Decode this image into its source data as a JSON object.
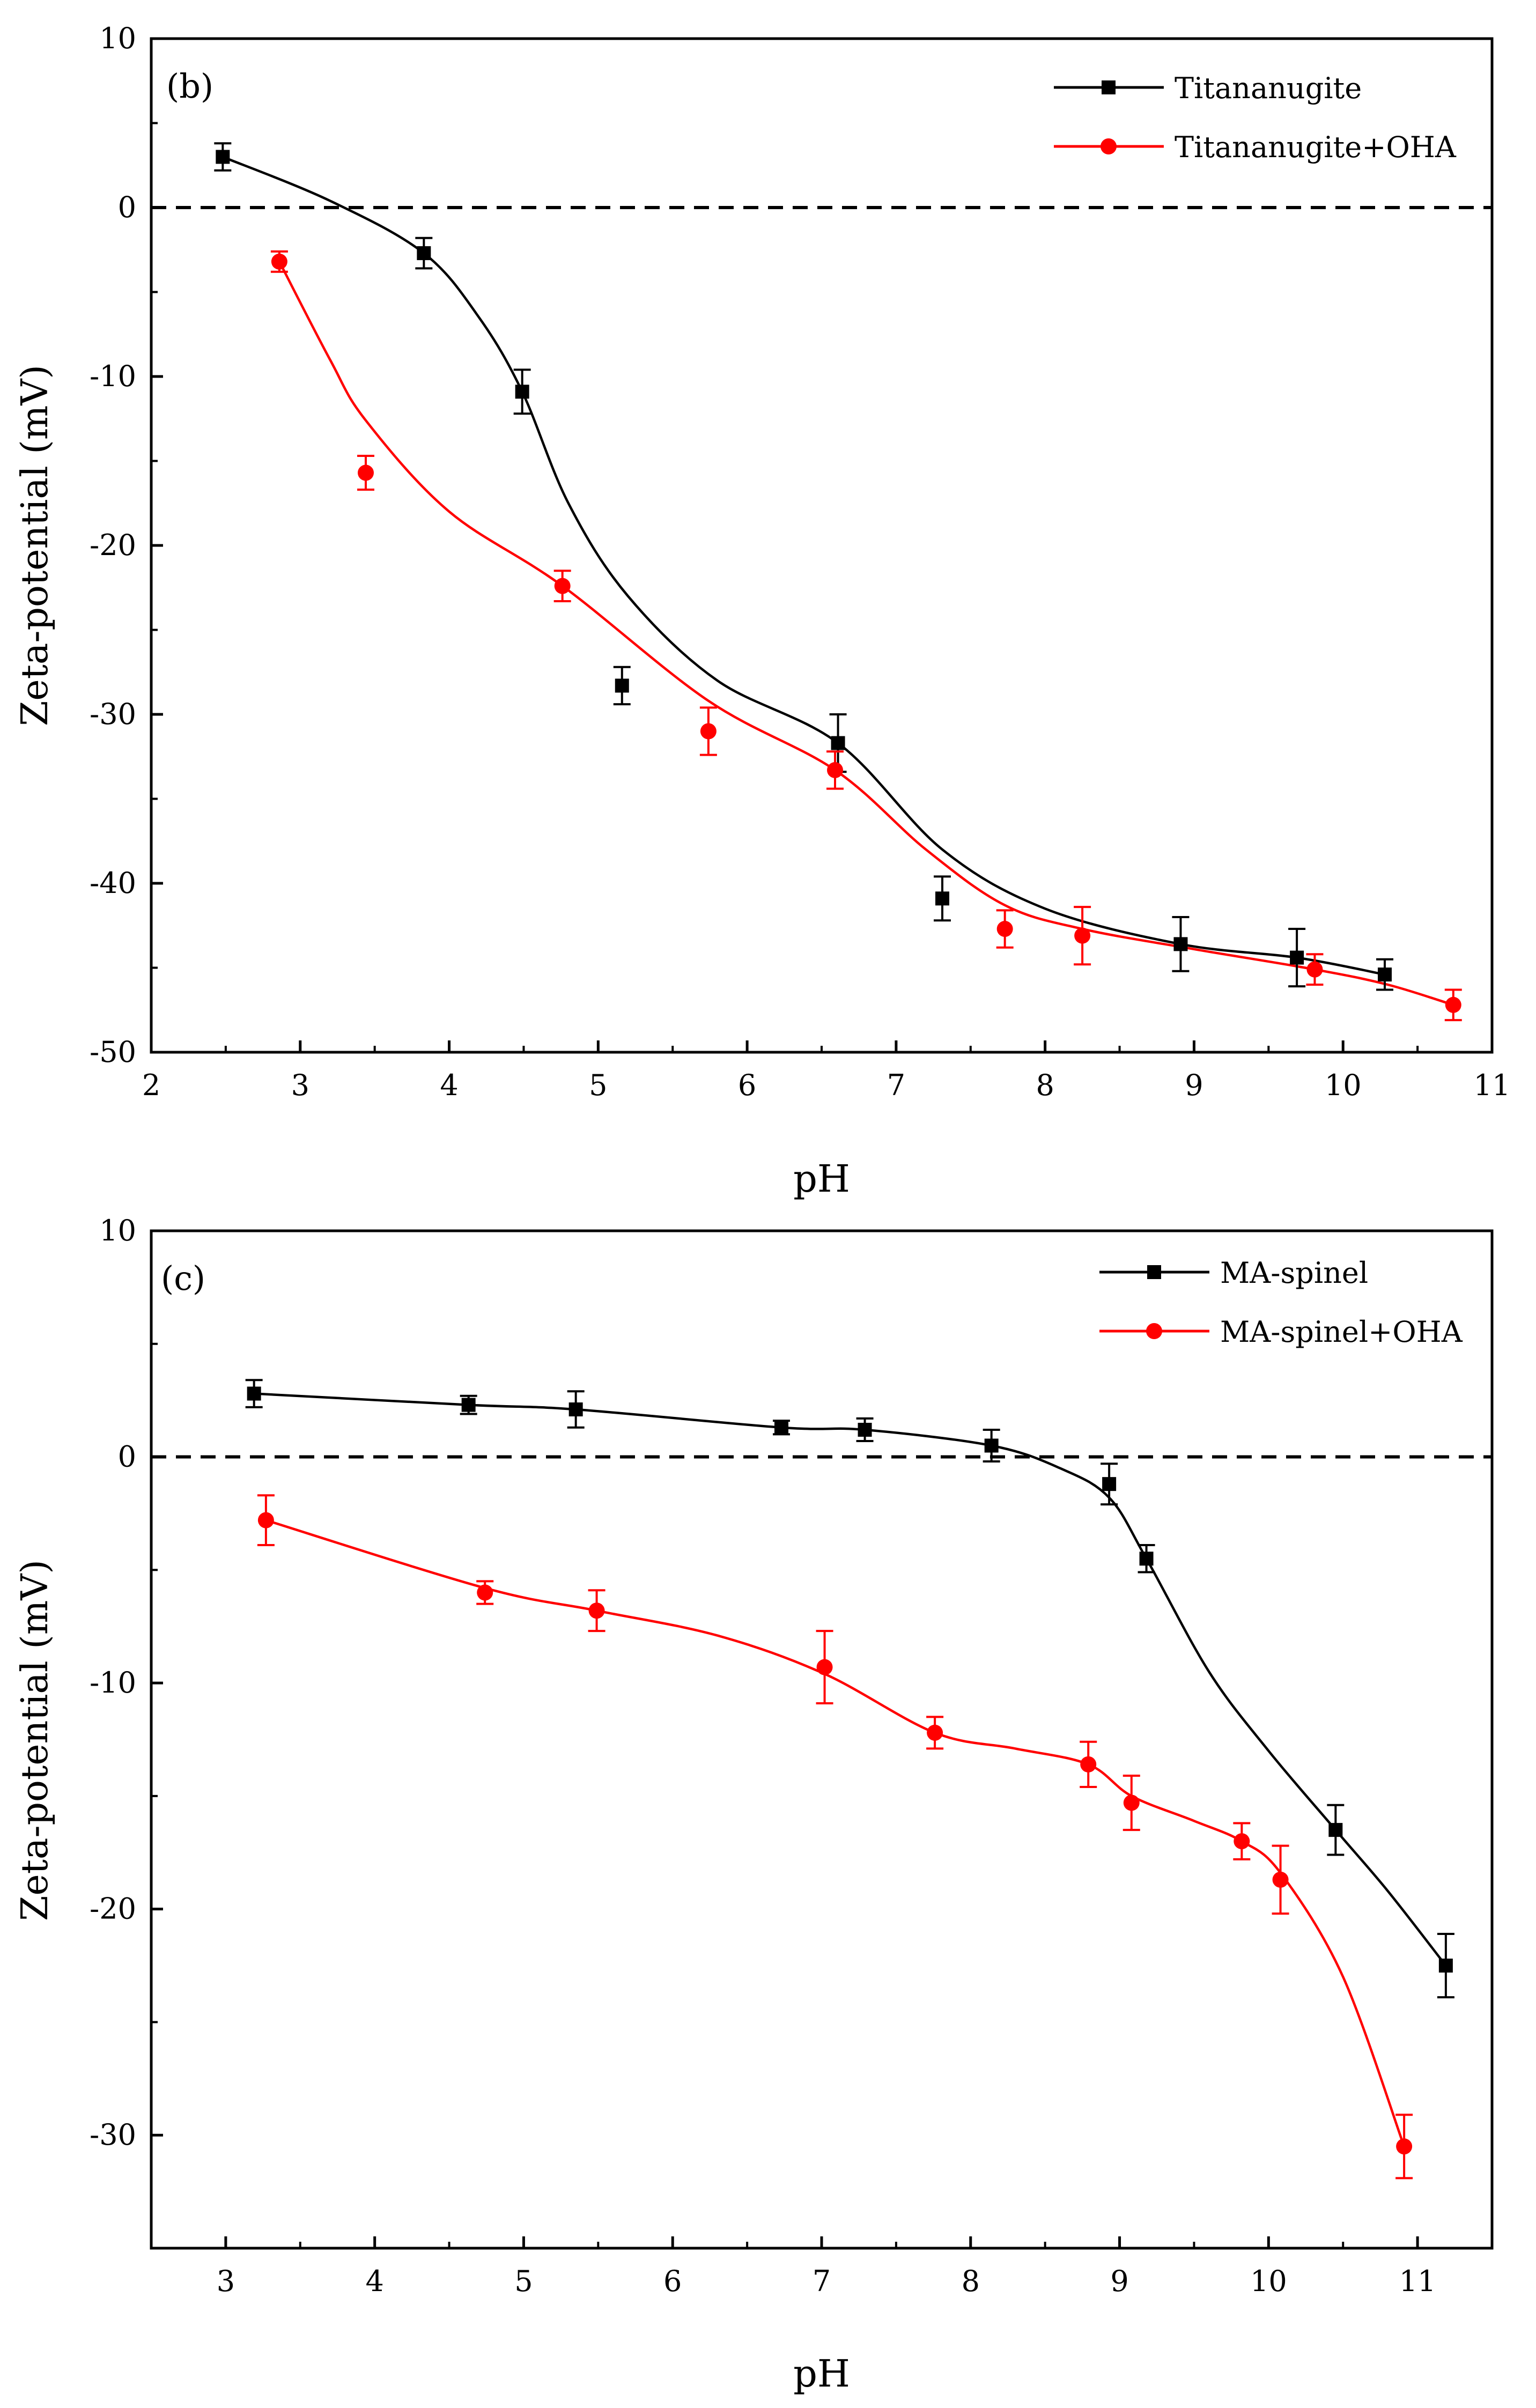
{
  "chart_data": [
    {
      "type": "line",
      "panel_label": "(b)",
      "xlabel": "pH",
      "ylabel": "Zeta-potential (mV)",
      "xlim": [
        2,
        11
      ],
      "ylim": [
        -50,
        10
      ],
      "xticks": [
        2,
        3,
        4,
        5,
        6,
        7,
        8,
        9,
        10,
        11
      ],
      "xtick_labels": [
        "2",
        "3",
        "4",
        "5",
        "6",
        "7",
        "8",
        "9",
        "10",
        "11"
      ],
      "yticks": [
        -50,
        -40,
        -30,
        -20,
        -10,
        0,
        10
      ],
      "ytick_labels": [
        "-50",
        "-40",
        "-30",
        "-20",
        "-10",
        "0",
        "10"
      ],
      "reference_line": 0,
      "legend_position": "top-right",
      "series": [
        {
          "name": "Titananugite",
          "color": "#000000",
          "marker": "square",
          "x": [
            2.48,
            3.83,
            4.49,
            5.16,
            6.61,
            7.31,
            8.91,
            9.69,
            10.28
          ],
          "y": [
            3.0,
            -2.7,
            -10.9,
            -28.3,
            -31.7,
            -40.9,
            -43.6,
            -44.4,
            -45.4
          ],
          "err": [
            0.8,
            0.9,
            1.3,
            1.1,
            1.7,
            1.3,
            1.6,
            1.7,
            0.9
          ],
          "curve": [
            [
              2.48,
              3.0
            ],
            [
              3.2,
              0.4
            ],
            [
              3.83,
              -2.7
            ],
            [
              4.2,
              -6.5
            ],
            [
              4.49,
              -10.9
            ],
            [
              4.8,
              -17.5
            ],
            [
              5.2,
              -23.0
            ],
            [
              5.8,
              -28.0
            ],
            [
              6.61,
              -31.7
            ],
            [
              7.31,
              -38.0
            ],
            [
              8.0,
              -41.5
            ],
            [
              8.91,
              -43.6
            ],
            [
              9.69,
              -44.4
            ],
            [
              10.28,
              -45.4
            ]
          ]
        },
        {
          "name": "Titananugite+OHA",
          "color": "#ff0000",
          "marker": "circle",
          "x": [
            2.86,
            3.44,
            4.76,
            5.74,
            6.59,
            7.73,
            8.25,
            9.81,
            10.74
          ],
          "y": [
            -3.2,
            -15.7,
            -22.4,
            -31.0,
            -33.3,
            -42.7,
            -43.1,
            -45.1,
            -47.2
          ],
          "err": [
            0.6,
            1.0,
            0.9,
            1.4,
            1.1,
            1.1,
            1.7,
            0.9,
            0.9
          ],
          "curve": [
            [
              2.86,
              -3.2
            ],
            [
              3.2,
              -9.0
            ],
            [
              3.44,
              -12.6
            ],
            [
              4.0,
              -18.0
            ],
            [
              4.76,
              -22.4
            ],
            [
              5.74,
              -29.2
            ],
            [
              6.59,
              -33.3
            ],
            [
              7.2,
              -38.0
            ],
            [
              7.73,
              -41.3
            ],
            [
              8.25,
              -42.7
            ],
            [
              9.0,
              -43.9
            ],
            [
              9.81,
              -45.1
            ],
            [
              10.3,
              -46.0
            ],
            [
              10.74,
              -47.2
            ]
          ]
        }
      ]
    },
    {
      "type": "line",
      "panel_label": "(c)",
      "xlabel": "pH",
      "ylabel": "Zeta-potential (mV)",
      "xlim": [
        2.5,
        11.5
      ],
      "ylim": [
        -35,
        10
      ],
      "xticks": [
        3,
        4,
        5,
        6,
        7,
        8,
        9,
        10,
        11
      ],
      "xtick_labels": [
        "3",
        "4",
        "5",
        "6",
        "7",
        "8",
        "9",
        "10",
        "11"
      ],
      "yticks": [
        -30,
        -20,
        -10,
        0,
        10
      ],
      "ytick_labels": [
        "-30",
        "-20",
        "-10",
        "0",
        "10"
      ],
      "reference_line": 0,
      "legend_position": "top-right",
      "series": [
        {
          "name": "MA-spinel",
          "color": "#000000",
          "marker": "square",
          "x": [
            3.19,
            4.63,
            5.35,
            6.73,
            7.29,
            8.14,
            8.93,
            9.18,
            10.45,
            11.19
          ],
          "y": [
            2.8,
            2.3,
            2.1,
            1.3,
            1.2,
            0.5,
            -1.2,
            -4.5,
            -16.5,
            -22.5
          ],
          "err": [
            0.6,
            0.4,
            0.8,
            0.3,
            0.5,
            0.7,
            0.9,
            0.6,
            1.1,
            1.4
          ],
          "curve": [
            [
              3.19,
              2.8
            ],
            [
              4.63,
              2.3
            ],
            [
              5.35,
              2.1
            ],
            [
              6.73,
              1.3
            ],
            [
              7.29,
              1.2
            ],
            [
              8.14,
              0.5
            ],
            [
              8.6,
              -0.5
            ],
            [
              8.93,
              -1.8
            ],
            [
              9.18,
              -4.5
            ],
            [
              9.6,
              -9.5
            ],
            [
              10.0,
              -13.0
            ],
            [
              10.45,
              -16.5
            ],
            [
              10.8,
              -19.2
            ],
            [
              11.19,
              -22.5
            ]
          ]
        },
        {
          "name": "MA-spinel+OHA",
          "color": "#ff0000",
          "marker": "circle",
          "x": [
            3.27,
            4.74,
            5.49,
            7.02,
            7.76,
            8.79,
            9.08,
            9.82,
            10.08,
            10.91
          ],
          "y": [
            -2.8,
            -6.0,
            -6.8,
            -9.3,
            -12.2,
            -13.6,
            -15.3,
            -17.0,
            -18.7,
            -30.5
          ],
          "err": [
            1.1,
            0.5,
            0.9,
            1.6,
            0.7,
            1.0,
            1.2,
            0.8,
            1.5,
            1.4
          ],
          "curve": [
            [
              3.27,
              -2.8
            ],
            [
              4.74,
              -5.8
            ],
            [
              5.49,
              -6.8
            ],
            [
              6.3,
              -7.9
            ],
            [
              7.02,
              -9.6
            ],
            [
              7.76,
              -12.2
            ],
            [
              8.3,
              -12.9
            ],
            [
              8.79,
              -13.6
            ],
            [
              9.08,
              -15.0
            ],
            [
              9.5,
              -16.1
            ],
            [
              9.82,
              -17.0
            ],
            [
              10.08,
              -18.4
            ],
            [
              10.5,
              -23.0
            ],
            [
              10.91,
              -30.5
            ]
          ]
        }
      ]
    }
  ]
}
